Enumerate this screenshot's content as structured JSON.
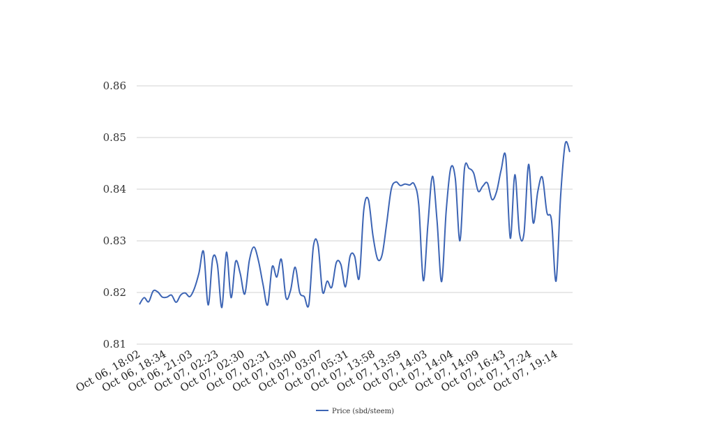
{
  "chart_data": {
    "type": "line",
    "title": "",
    "xlabel": "",
    "ylabel": "",
    "ylim": [
      0.81,
      0.86
    ],
    "yticks": [
      "0.81",
      "0.82",
      "0.83",
      "0.84",
      "0.85",
      "0.86"
    ],
    "grid": true,
    "legend_position": "bottom-center",
    "x_tick_labels": [
      "Oct 06, 18:02",
      "Oct 06, 18:34",
      "Oct 06, 21:03",
      "Oct 07, 02:23",
      "Oct 07, 02:30",
      "Oct 07, 02:31",
      "Oct 07, 03:00",
      "Oct 07, 03:07",
      "Oct 07, 05:31",
      "Oct 07, 13:58",
      "Oct 07, 13:59",
      "Oct 07, 14:03",
      "Oct 07, 14:04",
      "Oct 07, 14:09",
      "Oct 07, 16:43",
      "Oct 07, 17:24",
      "Oct 07, 19:14"
    ],
    "series": [
      {
        "name": "Price (sbd/steem)",
        "color": "#3c64b4",
        "values": [
          0.8177,
          0.819,
          0.8182,
          0.8203,
          0.8201,
          0.8191,
          0.8191,
          0.8195,
          0.8181,
          0.8195,
          0.8199,
          0.8192,
          0.8208,
          0.8238,
          0.8279,
          0.8176,
          0.8266,
          0.8255,
          0.8171,
          0.8278,
          0.819,
          0.826,
          0.8237,
          0.8197,
          0.8262,
          0.8288,
          0.8261,
          0.8215,
          0.8176,
          0.825,
          0.823,
          0.8264,
          0.819,
          0.8204,
          0.8249,
          0.82,
          0.8192,
          0.8177,
          0.829,
          0.8292,
          0.8201,
          0.8222,
          0.821,
          0.8258,
          0.8254,
          0.8211,
          0.827,
          0.827,
          0.8228,
          0.836,
          0.838,
          0.831,
          0.8265,
          0.8273,
          0.8334,
          0.84,
          0.8414,
          0.8407,
          0.841,
          0.8408,
          0.841,
          0.837,
          0.8223,
          0.8331,
          0.8425,
          0.8339,
          0.8221,
          0.8358,
          0.8441,
          0.842,
          0.83,
          0.844,
          0.844,
          0.8431,
          0.8396,
          0.8406,
          0.8412,
          0.838,
          0.8395,
          0.8437,
          0.8463,
          0.8305,
          0.8428,
          0.8315,
          0.8315,
          0.8448,
          0.8335,
          0.8395,
          0.8423,
          0.8355,
          0.834,
          0.8222,
          0.8387,
          0.8488,
          0.8472
        ]
      }
    ]
  }
}
